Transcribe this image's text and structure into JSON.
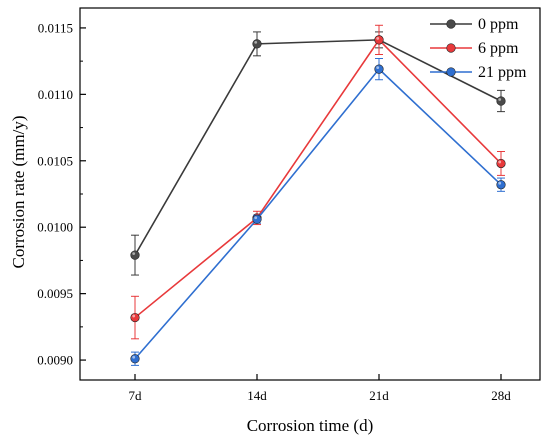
{
  "chart_data": {
    "type": "line",
    "categories": [
      "7d",
      "14d",
      "21d",
      "28d"
    ],
    "xlabel": "Corrosion time (d)",
    "ylabel": "Corrosion rate (mm/y)",
    "ylim": [
      0.00885,
      0.01165
    ],
    "yticks": [
      {
        "value": 0.009,
        "label": "0.0090"
      },
      {
        "value": 0.0095,
        "label": "0.0095"
      },
      {
        "value": 0.01,
        "label": "0.0100"
      },
      {
        "value": 0.0105,
        "label": "0.0105"
      },
      {
        "value": 0.011,
        "label": "0.0110"
      },
      {
        "value": 0.0115,
        "label": "0.0115"
      }
    ],
    "grid": false,
    "legend_position": "top-right",
    "series": [
      {
        "name": "0 ppm",
        "color": "#3a3a3a",
        "marker_color": "#4a4a4a",
        "values": [
          0.00979,
          0.01138,
          0.01141,
          0.01095
        ],
        "errors": [
          0.00015,
          9e-05,
          6e-05,
          8e-05
        ]
      },
      {
        "name": "6 ppm",
        "color": "#e8393b",
        "marker_color": "#e8393b",
        "values": [
          0.00932,
          0.01007,
          0.01141,
          0.01048
        ],
        "errors": [
          0.00016,
          5e-05,
          0.00011,
          9e-05
        ]
      },
      {
        "name": "21 ppm",
        "color": "#2f6fd0",
        "marker_color": "#2f6fd0",
        "values": [
          0.00901,
          0.01006,
          0.01119,
          0.01032
        ],
        "errors": [
          5e-05,
          3e-05,
          8e-05,
          5e-05
        ]
      }
    ]
  }
}
